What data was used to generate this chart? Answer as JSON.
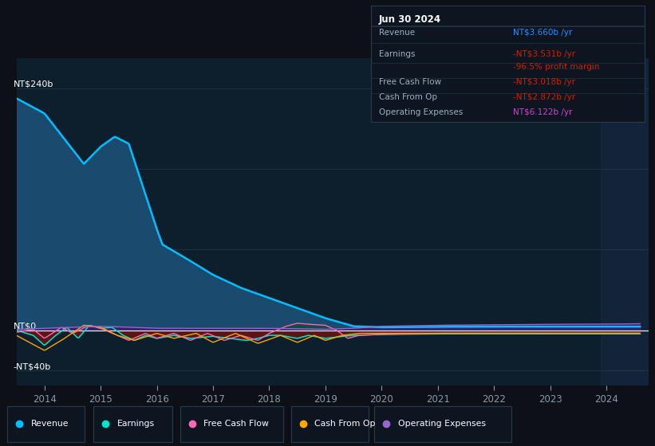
{
  "bg_color": "#0d1117",
  "plot_bg_color": "#0d1f2d",
  "plot_bg_right": "#111d2b",
  "grid_color": "#1e3a4a",
  "title_date": "Jun 30 2024",
  "info_box": {
    "Revenue": {
      "value": "NT$3.660b /yr",
      "color": "#1e90ff"
    },
    "Earnings": {
      "value": "-NT$3.531b /yr",
      "color": "#cc2200"
    },
    "profit_margin": "-96.5% profit margin",
    "profit_margin_color": "#cc2200",
    "Free Cash Flow": {
      "value": "-NT$3.018b /yr",
      "color": "#cc2200"
    },
    "Cash From Op": {
      "value": "-NT$2.872b /yr",
      "color": "#cc2200"
    },
    "Operating Expenses": {
      "value": "NT$6.122b /yr",
      "color": "#cc44cc"
    }
  },
  "legend": [
    {
      "label": "Revenue",
      "color": "#00bfff"
    },
    {
      "label": "Earnings",
      "color": "#00e5cc"
    },
    {
      "label": "Free Cash Flow",
      "color": "#ff69b4"
    },
    {
      "label": "Cash From Op",
      "color": "#ffa500"
    },
    {
      "label": "Operating Expenses",
      "color": "#9966cc"
    }
  ],
  "ylabel_top": "NT$240b",
  "ylabel_zero": "NT$0",
  "ylabel_bottom": "-NT$40b",
  "ylim": [
    -55,
    270
  ],
  "xlim": [
    2013.5,
    2024.75
  ],
  "x_ticks": [
    2014,
    2015,
    2016,
    2017,
    2018,
    2019,
    2020,
    2021,
    2022,
    2023,
    2024
  ],
  "revenue_color": "#00bfff",
  "revenue_fill_color": "#1a4a6e",
  "earnings_color": "#00e5cc",
  "fcf_color": "#ff69b4",
  "cashop_color": "#ffa500",
  "opex_color": "#9966cc",
  "earnings_fill_neg_color": "#5a1515",
  "opex_fill_color_pos": "#3a1a6e"
}
